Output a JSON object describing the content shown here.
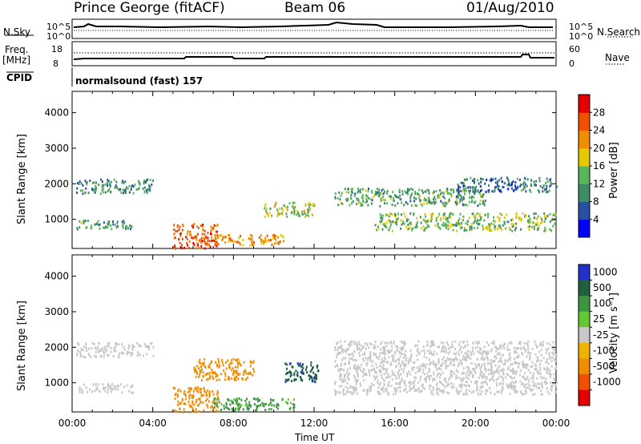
{
  "header": {
    "site": "Prince George (fitACF)",
    "beam": "Beam 06",
    "date": "01/Aug/2010"
  },
  "strip_labels": {
    "nsky": "N.Sky",
    "nsky_ticks": [
      "10^5",
      "10^0"
    ],
    "nsearch": "N.Search",
    "freq": "Freq.",
    "freq_unit": "[MHz]",
    "freq_ticks": [
      "18",
      "8"
    ],
    "nave": "Nave",
    "nave_ticks": [
      "60",
      "0"
    ],
    "cpid": "CPID",
    "cpid_value": "normalsound (fast) 157"
  },
  "colors": {
    "power_scale": [
      "#0000ff",
      "#2850a0",
      "#3c8c64",
      "#5ab45a",
      "#e6c800",
      "#f08c00",
      "#f05000",
      "#e60000"
    ],
    "velocity_scale": [
      "#2030c8",
      "#206040",
      "#3c9640",
      "#64c832",
      "#c8c8c8",
      "#f0b400",
      "#f08c00",
      "#f05000",
      "#e60000"
    ]
  },
  "chart_data": [
    {
      "type": "heatmap",
      "title": "Power",
      "ylabel": "Slant Range [km]",
      "xlabel": "",
      "ylim": [
        180,
        4600
      ],
      "xlim": [
        0,
        24
      ],
      "yticks": [
        "1000",
        "2000",
        "3000",
        "4000"
      ],
      "colorbar": {
        "label": "Power [dB]",
        "ticks": [
          "4",
          "8",
          "12",
          "16",
          "20",
          "24",
          "28"
        ],
        "range": [
          0,
          32
        ]
      },
      "series": [
        {
          "x": [
            0.2,
            4.0
          ],
          "y": [
            1750,
            2150
          ],
          "value": 10
        },
        {
          "x": [
            0.2,
            3.0
          ],
          "y": [
            750,
            1000
          ],
          "value": 12
        },
        {
          "x": [
            5.0,
            7.2
          ],
          "y": [
            200,
            900
          ],
          "value": 26
        },
        {
          "x": [
            7.0,
            10.5
          ],
          "y": [
            300,
            600
          ],
          "value": 22
        },
        {
          "x": [
            9.5,
            12.0
          ],
          "y": [
            1100,
            1500
          ],
          "value": 16
        },
        {
          "x": [
            13.0,
            20.5
          ],
          "y": [
            1400,
            1900
          ],
          "value": 12
        },
        {
          "x": [
            15.0,
            24.0
          ],
          "y": [
            700,
            1200
          ],
          "value": 14
        },
        {
          "x": [
            19.0,
            24.0
          ],
          "y": [
            1800,
            2200
          ],
          "value": 8
        }
      ]
    },
    {
      "type": "heatmap",
      "title": "Velocity",
      "ylabel": "Slant Range [km]",
      "xlabel": "Time UT",
      "ylim": [
        180,
        4600
      ],
      "xlim": [
        0,
        24
      ],
      "xticks": [
        "00:00",
        "04:00",
        "08:00",
        "12:00",
        "16:00",
        "20:00",
        "00:00"
      ],
      "yticks": [
        "1000",
        "2000",
        "3000",
        "4000"
      ],
      "colorbar": {
        "label": "Velocity [m s⁻¹]",
        "ticks": [
          "1000",
          "500",
          "100",
          "25",
          "-25",
          "-100",
          "-500",
          "-1000"
        ]
      },
      "series": [
        {
          "x": [
            0.2,
            4.0
          ],
          "y": [
            1750,
            2150
          ],
          "value": 0
        },
        {
          "x": [
            0.2,
            3.0
          ],
          "y": [
            750,
            1000
          ],
          "value": 0
        },
        {
          "x": [
            5.0,
            7.2
          ],
          "y": [
            200,
            900
          ],
          "value": -100
        },
        {
          "x": [
            7.0,
            11.0
          ],
          "y": [
            250,
            600
          ],
          "value": 80
        },
        {
          "x": [
            10.5,
            12.2
          ],
          "y": [
            1050,
            1650
          ],
          "value": 600
        },
        {
          "x": [
            6.0,
            9.0
          ],
          "y": [
            1100,
            1700
          ],
          "value": -200
        },
        {
          "x": [
            13.0,
            24.0
          ],
          "y": [
            700,
            2200
          ],
          "value": 0
        }
      ]
    }
  ]
}
